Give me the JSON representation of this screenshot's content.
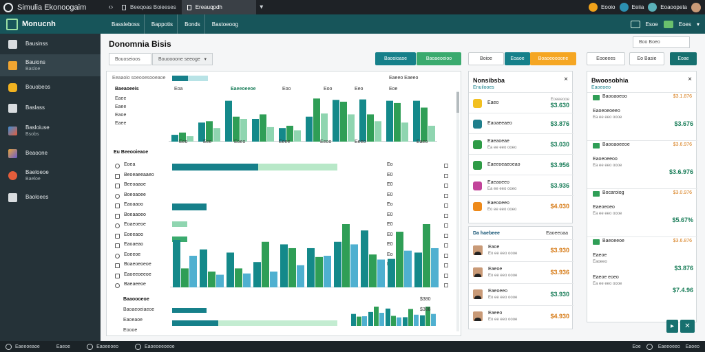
{
  "window": {
    "title": "Simulia Ekonoogaim",
    "tab_inactive": "Beeqoas Boieeses",
    "tab_active": "Ereauqpdh",
    "right_stat_1": "Eooio",
    "right_stat_2": "Eeiia",
    "right_stat_3": "Eoaoopeta"
  },
  "header": {
    "brand": "Monucnh",
    "nav": [
      "Bassleboss",
      "Bappotis",
      "Bonds",
      "Bastoeoog"
    ],
    "right_1": "Esoe",
    "right_2": "Eoes"
  },
  "sidebar": {
    "items": [
      {
        "label": "Bausinss",
        "sub": "",
        "icon_color": "#d9dde0"
      },
      {
        "label": "Bauions",
        "sub": "Basloe",
        "icon_color": "#f0a531"
      },
      {
        "label": "Bouobeos",
        "sub": "",
        "icon_color": "#f2b320"
      },
      {
        "label": "Baslass",
        "sub": "",
        "icon_color": "#d9dde0"
      },
      {
        "label": "Basloiuse",
        "sub": "Bsobs",
        "icon_color": "#3b8dd6"
      },
      {
        "label": "Beaoone",
        "sub": "",
        "icon_color": "#e8a63b"
      },
      {
        "label": "Baeloeoe",
        "sub": "Baeloe",
        "icon_color": "#e45d3b"
      },
      {
        "label": "Baoloees",
        "sub": "",
        "icon_color": "#d9dde0"
      }
    ]
  },
  "main": {
    "title": "Donomnia Bisis",
    "filter_1": "Bouoseioos",
    "filter_2": "Bouoooone seeoge",
    "btn_1": "Baooioase",
    "btn_2": "Baoaeoeioo",
    "btn_3": "Boioe",
    "btn_4": "Eoaoe",
    "btn_5": "Boaoeoooone",
    "btn_6": "Eooeees",
    "search_placeholder": "Boo Boeo",
    "btn_7": "Eo Basie",
    "btn_8": "Eoae"
  },
  "chart_panel": {
    "toolbar_text": "Eeaaoio soeooesooeaoe",
    "toolbar_right": "Eaeeo  Eaeeo",
    "left_labels": [
      "Baeaoeeis",
      "Eaee",
      "Eaee",
      "Eaoe",
      "Eaee"
    ],
    "section_2_title": "Eu Beeooieaoe",
    "section_2_rows": [
      "Eoea",
      "Beoeaeeaaeo",
      "Beeoaaoe",
      "Boeoaoee",
      "Eaoaaoo",
      "Boeaaoeo",
      "Eoaeoeoe",
      "Eoeeaoo",
      "Eaoaeao",
      "Eoeeoe",
      "Boaeoeoeoe",
      "Eaoeeoeeoe",
      "Baeaeeoe"
    ],
    "section_3_title": "Baaoooeoe",
    "section_3_rows": [
      "Baoaeoeiaeoe",
      "Eaoeaoe",
      "Eoooe"
    ],
    "x_ticks": [
      "Eeo",
      "Eee",
      "Eoeo",
      "Eeee",
      "Eeoo",
      "Eeeo",
      "Eaeo"
    ],
    "top_header": [
      "Eoa",
      "Eaeeoeeoe",
      "Eoo",
      "Eoo",
      "Eeo",
      "Eoe"
    ],
    "row_values": [
      "Eo",
      "E0",
      "E0",
      "E0",
      "Eo",
      "E0",
      "E0",
      "E0",
      "E0",
      "Eo",
      "E0"
    ],
    "right_values": [
      "$380",
      "$388"
    ]
  },
  "chart_data": [
    {
      "type": "bar",
      "series": [
        {
          "name": "teal",
          "color": "#14898a",
          "values": [
            0.15,
            0.42,
            0.9,
            0.5,
            0.3,
            0.55,
            0.92,
            0.93,
            0.9,
            0.9
          ]
        },
        {
          "name": "green",
          "color": "#2f9e56",
          "values": [
            0.2,
            0.45,
            0.55,
            0.6,
            0.35,
            0.95,
            0.88,
            0.6,
            0.85,
            0.75
          ]
        },
        {
          "name": "mint",
          "color": "#8fd5b0",
          "values": [
            0.12,
            0.3,
            0.5,
            0.32,
            0.25,
            0.62,
            0.6,
            0.45,
            0.42,
            0.35
          ]
        }
      ]
    },
    {
      "type": "bar",
      "series": [
        {
          "name": "teal",
          "color": "#14898a",
          "values": [
            0.75,
            0.6,
            0.55,
            0.4,
            0.68,
            0.62,
            0.72,
            0.9,
            0.45,
            0.55
          ]
        },
        {
          "name": "green",
          "color": "#2f9e56",
          "values": [
            0.3,
            0.25,
            0.3,
            0.72,
            0.62,
            0.48,
            1.0,
            0.52,
            0.88,
            1.0
          ]
        },
        {
          "name": "lightblue",
          "color": "#4fb0d0",
          "values": [
            0.5,
            0.2,
            0.22,
            0.25,
            0.35,
            0.5,
            0.68,
            0.44,
            0.58,
            0.62
          ]
        }
      ]
    }
  ],
  "cards_mid": {
    "title": "Nonsibsba",
    "subtitle": "Enuilooes",
    "items": [
      {
        "name": "Eaeo",
        "sub": "",
        "value": "$3.630",
        "small": "Eoeeeooe",
        "color": "#1b7e5a",
        "icon": "#f2c020"
      },
      {
        "name": "Eaoaeeaeo",
        "sub": "",
        "value": "$3.876",
        "small": "",
        "color": "#1b7e5a",
        "icon": "#1f7f8c"
      },
      {
        "name": "Eaeaoeae",
        "sub": "Ea ee eeo ooeo",
        "value": "$3.030",
        "small": "",
        "color": "#1b7e5a",
        "icon": "#2e9b46"
      },
      {
        "name": "Eaeeoeaeoeao",
        "sub": "",
        "value": "$3.956",
        "small": "",
        "color": "#1b7e5a",
        "icon": "#2e9b46"
      },
      {
        "name": "Eaeaoeeo",
        "sub": "Ea ee eeo ooeo",
        "value": "$3.936",
        "small": "",
        "color": "#1b7e5a",
        "icon": "#c2449a"
      },
      {
        "name": "Eaeooeeo",
        "sub": "Eo ee eeo ooeo",
        "value": "$4.030",
        "small": "",
        "color": "#d67a15",
        "icon": "#ee8a1a"
      }
    ],
    "section2_title": "Da haebeee",
    "section2_tag": "Eaoeeoaa",
    "people": [
      {
        "name": "Eaoe",
        "sub": "Eo ee eeo oooe",
        "value": "$3.930",
        "color": "#d67a15"
      },
      {
        "name": "Eaeoe",
        "sub": "Eo ee eeo oooe",
        "value": "$3.936",
        "color": "#d67a15"
      },
      {
        "name": "Eaeoeeo",
        "sub": "Eo ee eeo oooe",
        "value": "$3.930",
        "color": "#1b7e5a"
      },
      {
        "name": "Eaeeo",
        "sub": "Eo ee eeo oooe",
        "value": "$4.930",
        "color": "#d67a15"
      }
    ]
  },
  "cards_right": {
    "title": "Bwoosobhia",
    "subtitle": "Eaoeoeo",
    "groups": [
      {
        "head": "Baooaoeoo",
        "head_val": "$3.1.876",
        "rows": [
          {
            "name": "Eaoeoeoeeo",
            "sub": "Ea ee eeo oooe",
            "value": "$3.676",
            "color": "#1b7e5a"
          }
        ]
      },
      {
        "head": "Baooaoeeoe",
        "head_val": "$3.6.976",
        "rows": [
          {
            "name": "Eaoeoeeoo",
            "sub": "Ea ee eeo oooe",
            "value": "$3.6.976",
            "color": "#1b7e5a"
          }
        ]
      },
      {
        "head": "Bocaroiog",
        "head_val": "$3.0.976",
        "rows": [
          {
            "name": "Eaeoeoeo",
            "sub": "Ea ee eeo oooe",
            "value": "$5.67%",
            "color": "#1b7e5a"
          }
        ]
      },
      {
        "head": "Baeoeeoe",
        "head_val": "$3.6.876",
        "rows": [
          {
            "name": "Eaeoe",
            "sub": "Eaoeeo",
            "value": "$3.876",
            "color": "#1b7e5a"
          },
          {
            "name": "Eaeoe eoeo",
            "sub": "Ea ee eeo oooe",
            "value": "$7.4.96",
            "color": "#1b7e5a"
          }
        ]
      }
    ]
  },
  "footer": {
    "items": [
      "Eaeeoeaoe",
      "Eaeoe",
      "Eaoeeoeo",
      "Eaoeoeeoeoe"
    ],
    "right_1": "Eoe",
    "right_2": "Eaeeoeeo",
    "right_3": "Eaoeo"
  }
}
